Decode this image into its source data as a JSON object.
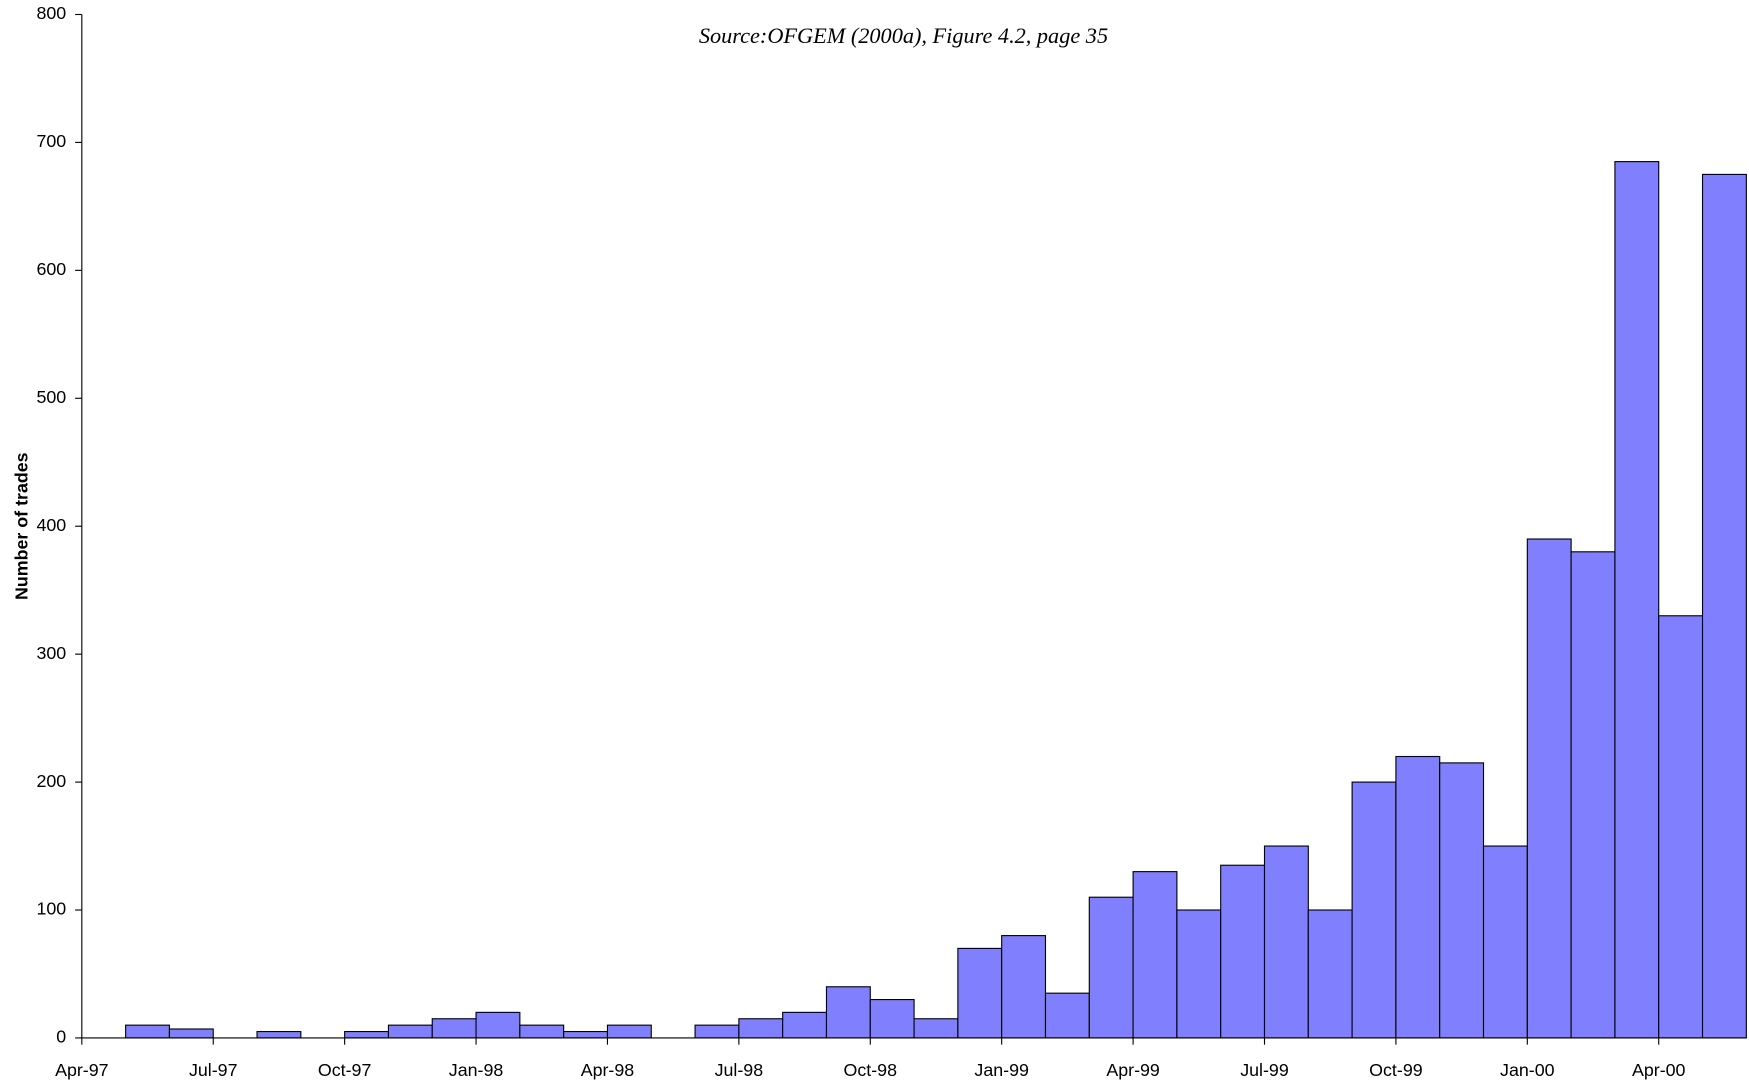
{
  "chart_data": {
    "type": "bar",
    "title": "Source:OFGEM (2000a), Figure 4.2, page 35",
    "y_label": "Number of trades",
    "categories": [
      "Apr-97",
      null,
      null,
      "Jul-97",
      null,
      null,
      "Oct-97",
      null,
      null,
      "Jan-98",
      null,
      null,
      "Apr-98",
      null,
      null,
      "Jul-98",
      null,
      null,
      "Oct-98",
      null,
      null,
      "Jan-99",
      null,
      null,
      "Apr-99",
      null,
      null,
      "Jul-99",
      null,
      null,
      "Oct-99",
      null,
      null,
      "Jan-00",
      null,
      null,
      "Apr-00",
      null
    ],
    "values": [
      0,
      10,
      7,
      0,
      5,
      0,
      5,
      10,
      15,
      20,
      10,
      5,
      10,
      0,
      10,
      15,
      20,
      40,
      30,
      15,
      70,
      80,
      35,
      110,
      130,
      100,
      135,
      150,
      100,
      200,
      220,
      215,
      150,
      390,
      380,
      685,
      330,
      675
    ],
    "color": "#8080ff",
    "ylim": [
      0,
      800
    ],
    "yticks": [
      0,
      100,
      200,
      300,
      400,
      500,
      600,
      700,
      800
    ],
    "grid": false
  }
}
